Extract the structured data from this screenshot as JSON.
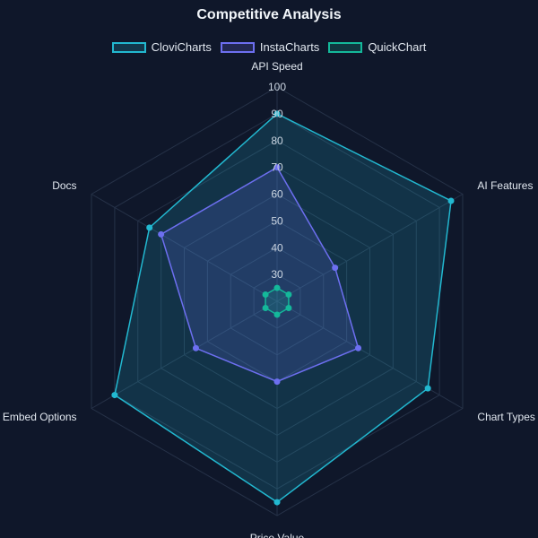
{
  "chart_data": {
    "type": "radar",
    "title": "Competitive Analysis",
    "axes": [
      "API Speed",
      "AI Features",
      "Chart Types",
      "Price Value",
      "Embed Options",
      "Docs"
    ],
    "r_ticks": [
      30,
      40,
      50,
      60,
      70,
      80,
      90,
      100
    ],
    "r_range": [
      20,
      100
    ],
    "legend_position": "top",
    "series": [
      {
        "name": "CloviCharts",
        "color": "#22b8d0",
        "values": [
          90,
          95,
          85,
          95,
          90,
          75
        ]
      },
      {
        "name": "InstaCharts",
        "color": "#6d6ff0",
        "values": [
          70,
          45,
          55,
          50,
          55,
          70
        ]
      },
      {
        "name": "QuickChart",
        "color": "#14b89a",
        "values": [
          25,
          25,
          25,
          25,
          25,
          25
        ]
      }
    ]
  }
}
